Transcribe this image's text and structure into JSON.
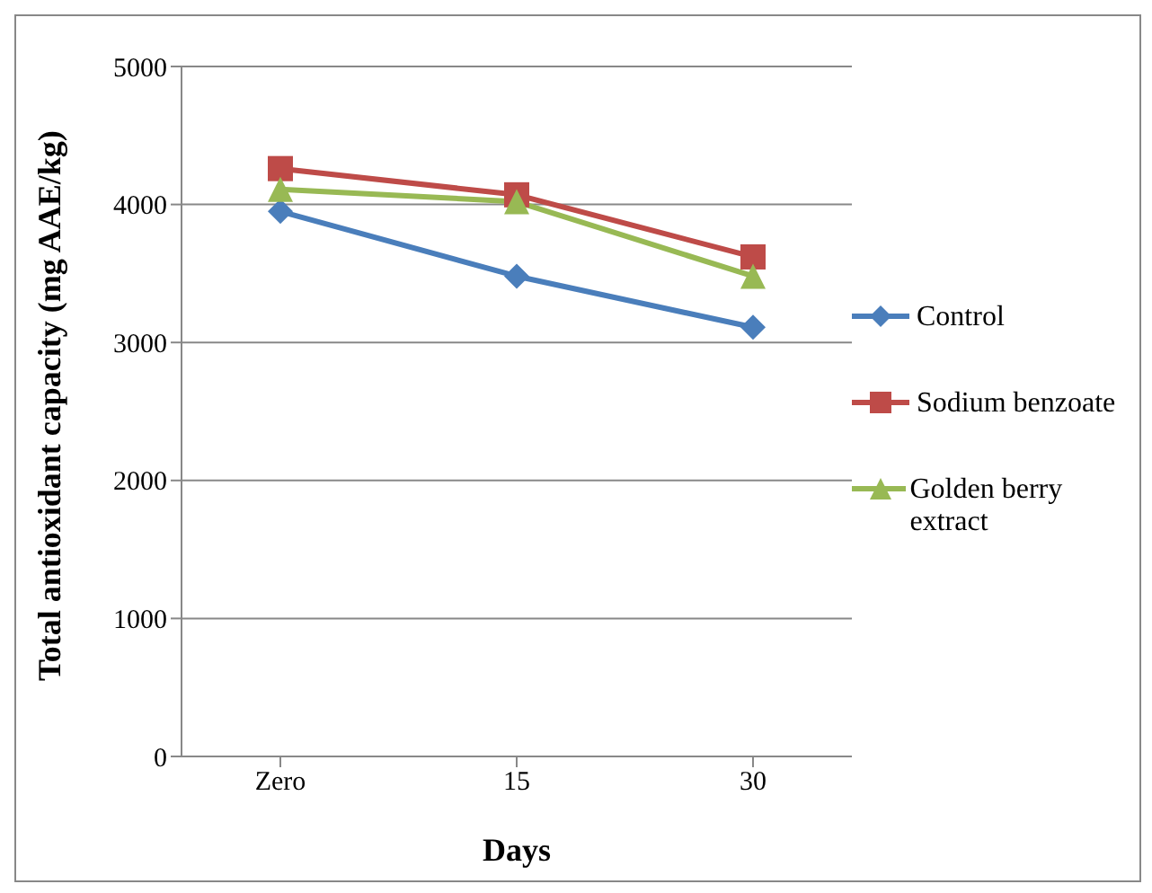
{
  "chart_data": {
    "type": "line",
    "xlabel": "Days",
    "ylabel": "Total antioxidant capacity (mg AAE/kg)",
    "categories": [
      "Zero",
      "15",
      "30"
    ],
    "series": [
      {
        "name": "Control",
        "color": "#4a7ebb",
        "marker": "diamond",
        "values": [
          3950,
          3480,
          3110
        ]
      },
      {
        "name": "Sodium benzoate",
        "color": "#be4b48",
        "marker": "square",
        "values": [
          4260,
          4070,
          3620
        ]
      },
      {
        "name": "Golden berry extract",
        "color": "#98b954",
        "marker": "triangle",
        "values": [
          4110,
          4020,
          3480
        ]
      }
    ],
    "ylim": [
      0,
      5000
    ],
    "yticks": [
      0,
      1000,
      2000,
      3000,
      4000,
      5000
    ],
    "grid": "y",
    "legend": "right"
  }
}
